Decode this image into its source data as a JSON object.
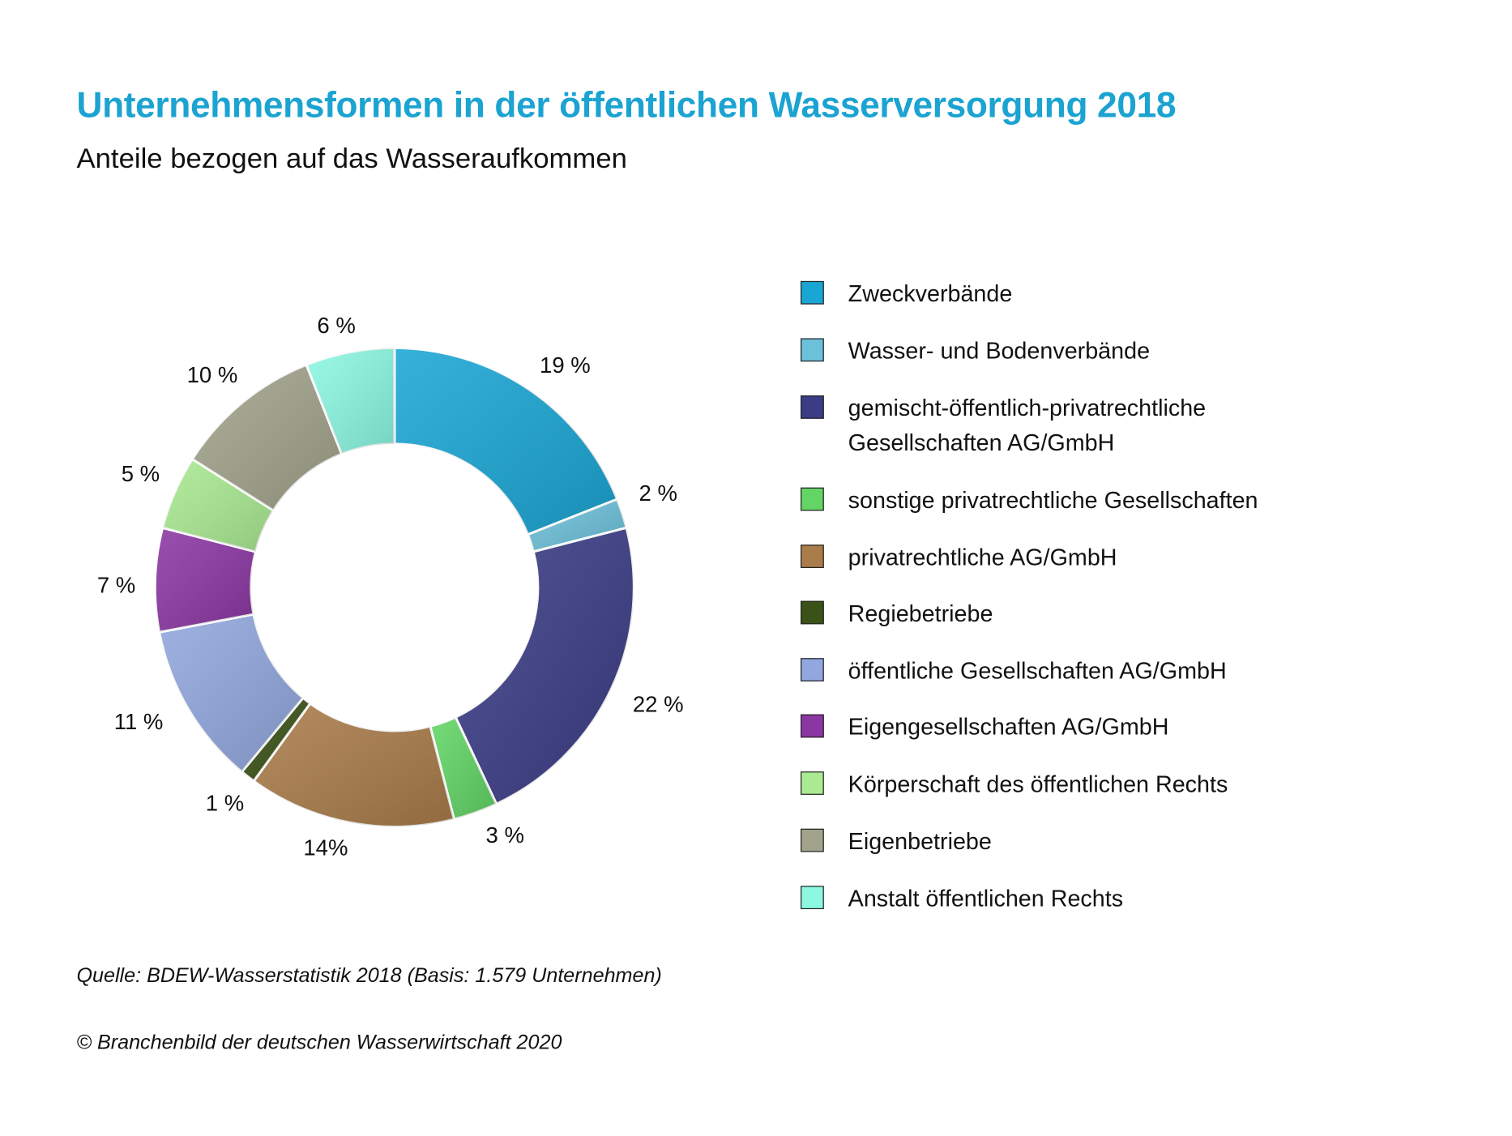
{
  "chart_data": {
    "type": "pie",
    "variant": "donut",
    "title": "Unternehmensformen in der öffentlichen Wasserversorgung 2018",
    "subtitle": "Anteile bezogen auf das Wasseraufkommen",
    "unit": "%",
    "categories": [
      "Zweckverbände",
      "Wasser- und Bodenverbände",
      "gemischt-öffentlich-privatrechtliche Gesellschaften AG/GmbH",
      "sonstige privatrechtliche Gesellschaften",
      "privatrechtliche AG/GmbH",
      "Regiebetriebe",
      "öffentliche Gesellschaften AG/GmbH",
      "Eigengesellschaften AG/GmbH",
      "Körperschaft des öffentlichen Rechts",
      "Eigenbetriebe",
      "Anstalt öffentlichen Rechts"
    ],
    "legend_lines": [
      [
        "Zweckverbände"
      ],
      [
        "Wasser- und Bodenverbände"
      ],
      [
        "gemischt-öffentlich-privatrechtliche",
        "Gesellschaften AG/GmbH"
      ],
      [
        "sonstige privatrechtliche Gesellschaften"
      ],
      [
        "privatrechtliche AG/GmbH"
      ],
      [
        "Regiebetriebe"
      ],
      [
        "öffentliche Gesellschaften AG/GmbH"
      ],
      [
        "Eigengesellschaften AG/GmbH"
      ],
      [
        "Körperschaft des öffentlichen Rechts"
      ],
      [
        "Eigenbetriebe"
      ],
      [
        "Anstalt öffentlichen Rechts"
      ]
    ],
    "values": [
      19,
      2,
      22,
      3,
      14,
      1,
      11,
      7,
      5,
      10,
      6
    ],
    "data_labels": [
      "19 %",
      "2 %",
      "22 %",
      "3 %",
      "14%",
      "1 %",
      "11 %",
      "7 %",
      "5 %",
      "10 %",
      "6 %"
    ],
    "colors": [
      "#1aa6d4",
      "#6cc0d9",
      "#3b3c85",
      "#62d565",
      "#aa7c4a",
      "#3a5217",
      "#91a7dd",
      "#8b37a3",
      "#aaea92",
      "#a2a38b",
      "#8cf8e2"
    ],
    "legend": "right"
  },
  "source": "Quelle: BDEW-Wasserstatistik 2018 (Basis: 1.579 Unternehmen)",
  "copyright": "© Branchenbild der deutschen Wasserwirtschaft 2020"
}
